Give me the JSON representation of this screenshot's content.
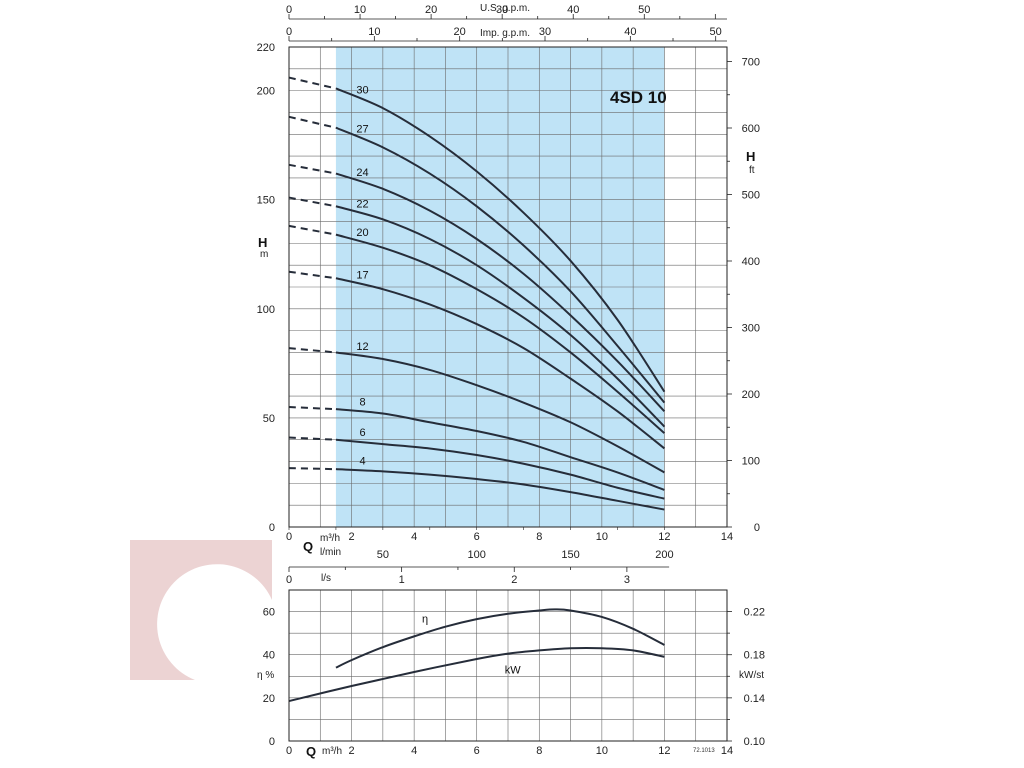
{
  "colors": {
    "band": "#bfe3f6",
    "curve": "#262d3a",
    "grid": "#6a6a6a",
    "logo": "#e6c4c4"
  },
  "logo_icon": "brand-swirl-watermark-icon",
  "chart_data": [
    {
      "type": "line",
      "title": "4SD 10",
      "xlabel_symbol": "Q",
      "xlabel_unit": "m³/h",
      "ylabel_symbol": "H",
      "ylabel_unit": "m",
      "y2label_symbol": "H",
      "y2label_unit": "ft",
      "xlim": [
        0,
        14
      ],
      "ylim": [
        0,
        220
      ],
      "y2lim": [
        0,
        721.8
      ],
      "x_ticks": [
        0,
        2,
        4,
        6,
        8,
        10,
        12,
        14
      ],
      "y_ticks": [
        0,
        50,
        100,
        150,
        200,
        220
      ],
      "y2_ticks": [
        0,
        100,
        200,
        300,
        400,
        500,
        600,
        700
      ],
      "top_axis_1": {
        "label": "U.S. g.p.m.",
        "ticks": [
          0,
          10,
          20,
          30,
          40,
          50
        ],
        "per_m3h": 4.4029
      },
      "top_axis_2": {
        "label": "Imp. g.p.m.",
        "ticks": [
          0,
          10,
          20,
          30,
          40,
          50
        ],
        "per_m3h": 3.6662
      },
      "bottom_axis_1": {
        "label": "l/min",
        "ticks": [
          50,
          100,
          150,
          200
        ],
        "per_m3h": 16.6667
      },
      "bottom_axis_2": {
        "label": "l/s",
        "ticks": [
          0,
          1,
          2,
          3
        ],
        "per_m3h": 0.27778
      },
      "operating_range": [
        1.5,
        12
      ],
      "series": [
        {
          "name": "30",
          "x": [
            0,
            1.5,
            3,
            4.5,
            6,
            7.5,
            9,
            10.5,
            12
          ],
          "y": [
            206,
            201,
            192,
            179,
            163,
            144,
            122,
            95,
            62
          ]
        },
        {
          "name": "27",
          "x": [
            0,
            1.5,
            3,
            4.5,
            6,
            7.5,
            9,
            10.5,
            12
          ],
          "y": [
            188,
            183,
            174,
            162,
            147,
            129,
            108,
            83,
            57
          ]
        },
        {
          "name": "24",
          "x": [
            0,
            1.5,
            3,
            4.5,
            6,
            7.5,
            9,
            10.5,
            12
          ],
          "y": [
            166,
            162,
            155,
            145,
            132,
            116,
            97,
            76,
            53
          ]
        },
        {
          "name": "22",
          "x": [
            0,
            1.5,
            3,
            4.5,
            6,
            7.5,
            9,
            10.5,
            12
          ],
          "y": [
            151,
            147,
            141,
            132,
            120,
            105,
            88,
            68,
            46
          ]
        },
        {
          "name": "20",
          "x": [
            0,
            1.5,
            3,
            4.5,
            6,
            7.5,
            9,
            10.5,
            12
          ],
          "y": [
            138,
            134,
            128,
            120,
            109,
            96,
            80,
            62,
            43
          ]
        },
        {
          "name": "17",
          "x": [
            0,
            1.5,
            3,
            4.5,
            6,
            7.5,
            9,
            10.5,
            12
          ],
          "y": [
            117,
            114,
            109,
            102,
            93,
            82,
            68,
            53,
            36
          ]
        },
        {
          "name": "12",
          "x": [
            0,
            1.5,
            3,
            4.5,
            6,
            7.5,
            9,
            10.5,
            12
          ],
          "y": [
            82,
            80,
            77,
            72,
            65,
            57,
            48,
            37,
            25
          ]
        },
        {
          "name": "8",
          "x": [
            0,
            1.5,
            3,
            4.5,
            6,
            7.5,
            9,
            10.5,
            12
          ],
          "y": [
            55,
            54,
            52,
            48,
            44,
            39,
            32,
            25,
            17
          ]
        },
        {
          "name": "6",
          "x": [
            0,
            1.5,
            3,
            4.5,
            6,
            7.5,
            9,
            10.5,
            12
          ],
          "y": [
            41,
            40,
            38,
            36,
            33,
            29,
            24,
            18,
            13
          ]
        },
        {
          "name": "4",
          "x": [
            0,
            1.5,
            3,
            4.5,
            6,
            7.5,
            9,
            10.5,
            12
          ],
          "y": [
            27,
            26.5,
            25.5,
            24,
            22,
            19.5,
            16,
            12,
            8
          ]
        }
      ]
    },
    {
      "type": "line",
      "xlabel_symbol": "Q",
      "xlabel_unit": "m³/h",
      "ylabel": "η %",
      "y2label": "kW/st",
      "xlim": [
        0,
        14
      ],
      "ylim": [
        0,
        70
      ],
      "y2lim": [
        0.1,
        0.24
      ],
      "x_ticks": [
        0,
        2,
        4,
        6,
        8,
        10,
        12,
        14
      ],
      "y_ticks": [
        0,
        20,
        40,
        60
      ],
      "y2_ticks": [
        0.1,
        0.14,
        0.18,
        0.22
      ],
      "y2_tick_labels": [
        "0.10",
        "0.14",
        "0.18",
        "0.22"
      ],
      "series": [
        {
          "name": "η",
          "axis": "left",
          "x": [
            1.5,
            2,
            3,
            4,
            5,
            6,
            7,
            8,
            8.5,
            9,
            10,
            11,
            12
          ],
          "y": [
            34,
            37.5,
            43.5,
            48.5,
            53,
            56.5,
            59,
            60.5,
            61,
            60.5,
            57.5,
            52,
            44.5
          ]
        },
        {
          "name": "kW",
          "axis": "right",
          "x": [
            0,
            2,
            4,
            6,
            7,
            8,
            9,
            10,
            11,
            12
          ],
          "y": [
            0.137,
            0.151,
            0.164,
            0.176,
            0.181,
            0.184,
            0.186,
            0.186,
            0.184,
            0.178
          ]
        }
      ]
    }
  ],
  "footnote": "72.1013"
}
